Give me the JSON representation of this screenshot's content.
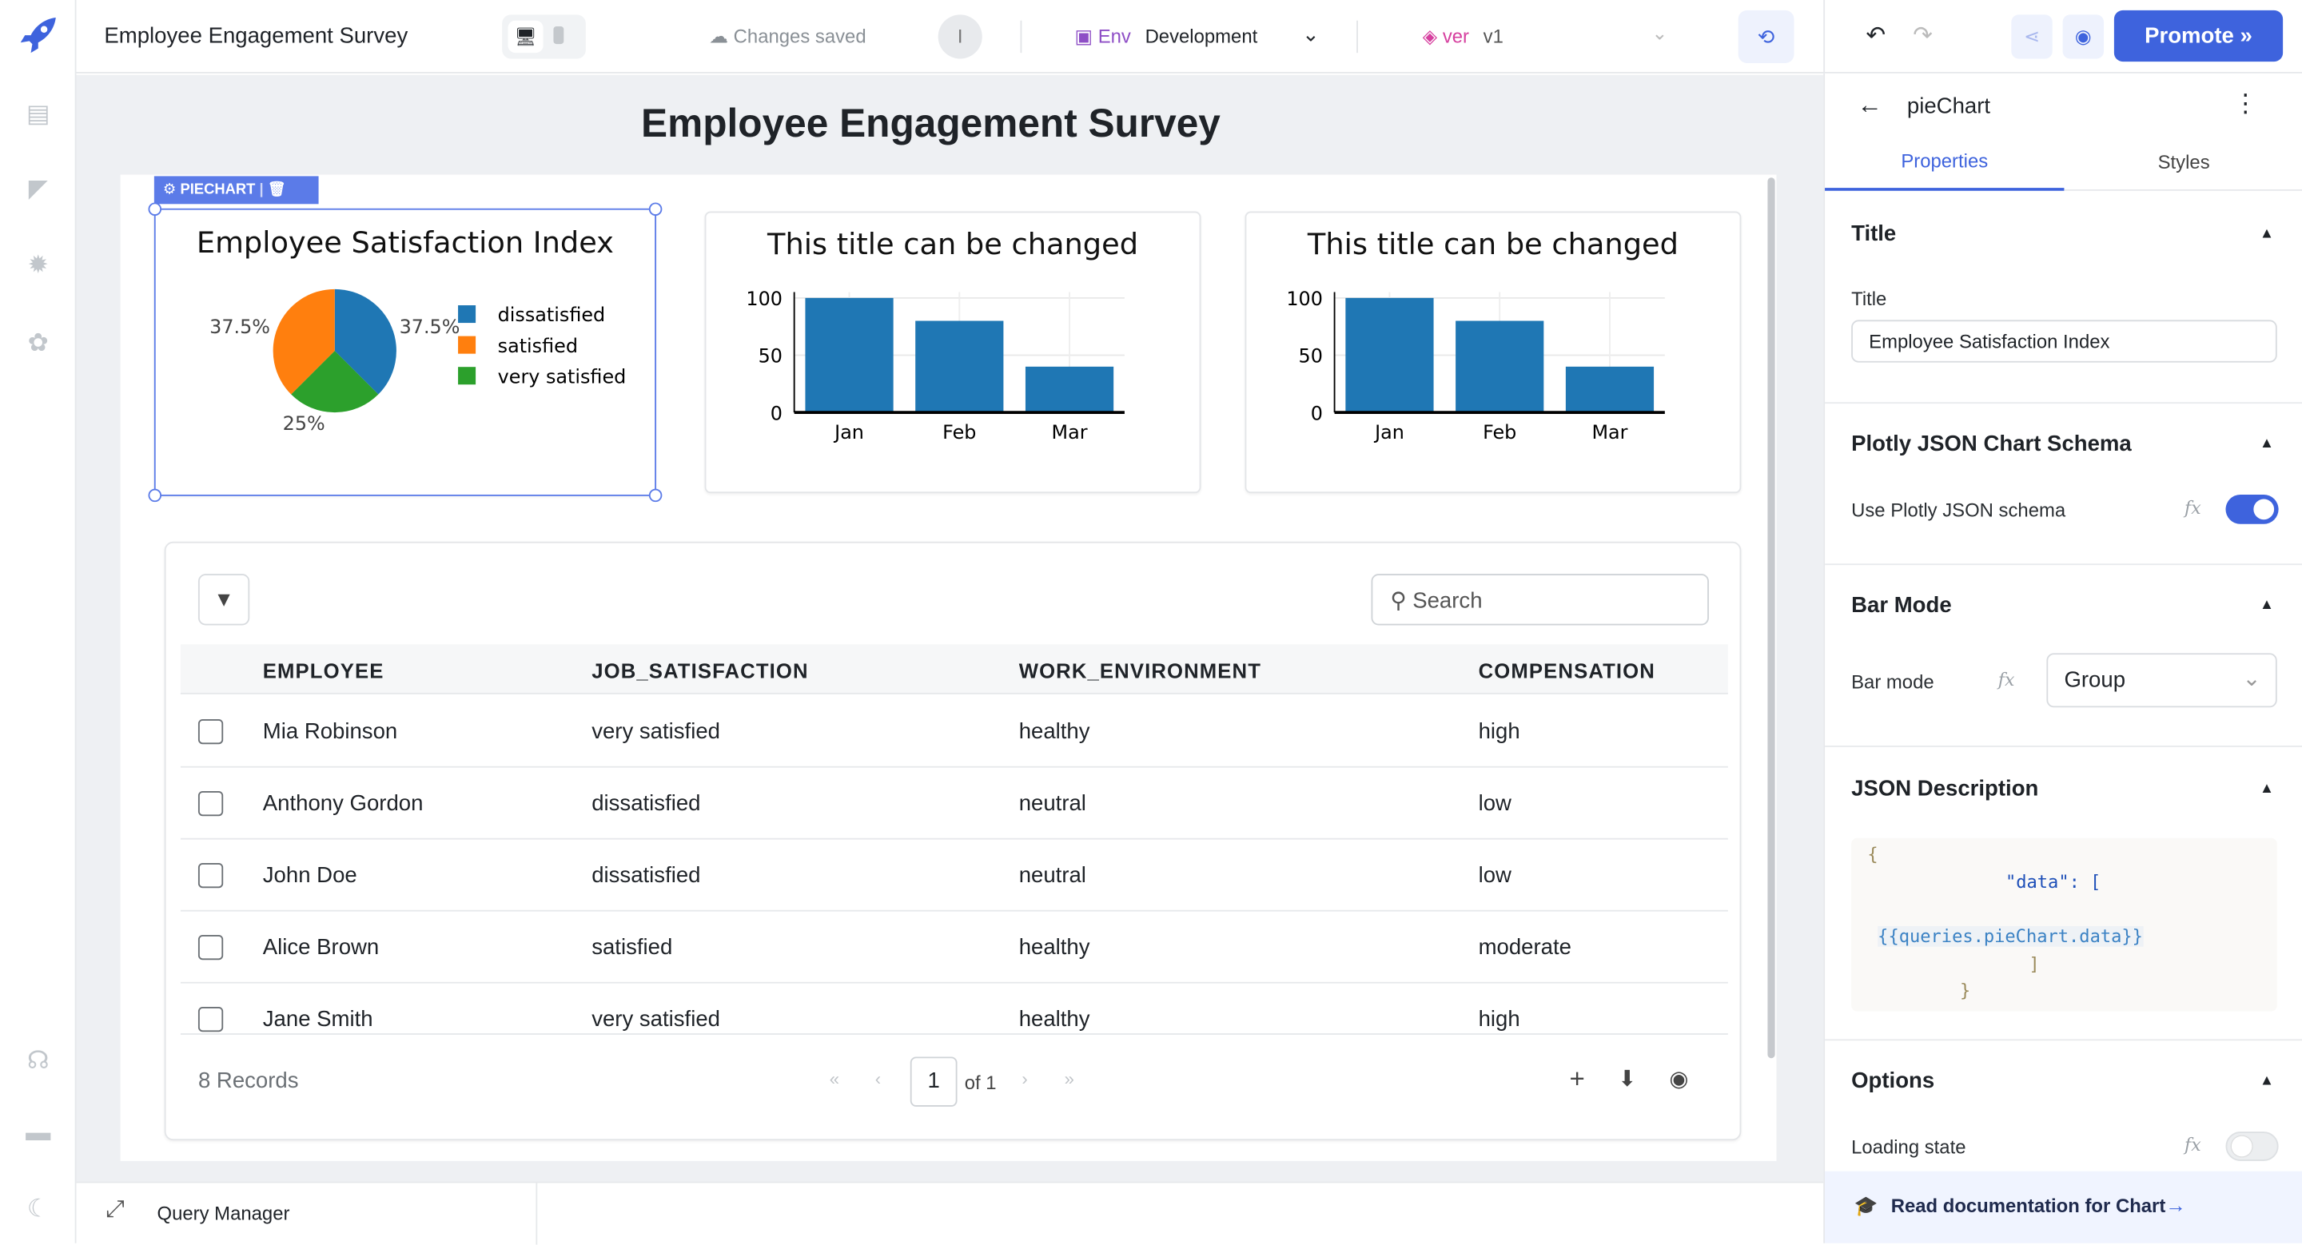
{
  "app": {
    "title": "Employee Engagement Survey",
    "save_status": "Changes saved",
    "user_initial": "I",
    "env_label": "Env",
    "env_value": "Development",
    "ver_label": "ver",
    "ver_value": "v1",
    "promote_label": "Promote"
  },
  "canvas": {
    "page_title": "Employee Engagement Survey",
    "selected_widget_label": "PIECHART"
  },
  "chart_data": [
    {
      "type": "pie",
      "title": "Employee Satisfaction Index",
      "labels": [
        "dissatisfied",
        "satisfied",
        "very satisfied"
      ],
      "values": [
        37.5,
        37.5,
        25
      ],
      "slice_labels": [
        "37.5%",
        "37.5%",
        "25%"
      ],
      "colors": [
        "#1f77b4",
        "#ff7f0e",
        "#2ca02c"
      ],
      "legend": "right"
    },
    {
      "type": "bar",
      "title": "This title can be changed",
      "categories": [
        "Jan",
        "Feb",
        "Mar"
      ],
      "values": [
        100,
        80,
        40
      ],
      "ylim": [
        0,
        100
      ],
      "yticks": [
        "0",
        "50",
        "100"
      ],
      "color": "#1f77b4"
    },
    {
      "type": "bar",
      "title": "This title can be changed",
      "categories": [
        "Jan",
        "Feb",
        "Mar"
      ],
      "values": [
        100,
        80,
        40
      ],
      "ylim": [
        0,
        100
      ],
      "yticks": [
        "0",
        "50",
        "100"
      ],
      "color": "#1f77b4"
    }
  ],
  "table": {
    "search_placeholder": "Search",
    "columns": [
      "EMPLOYEE",
      "JOB_SATISFACTION",
      "WORK_ENVIRONMENT",
      "COMPENSATION"
    ],
    "rows": [
      [
        "Mia Robinson",
        "very satisfied",
        "healthy",
        "high"
      ],
      [
        "Anthony Gordon",
        "dissatisfied",
        "neutral",
        "low"
      ],
      [
        "John Doe",
        "dissatisfied",
        "neutral",
        "low"
      ],
      [
        "Alice Brown",
        "satisfied",
        "healthy",
        "moderate"
      ],
      [
        "Jane Smith",
        "very satisfied",
        "healthy",
        "high"
      ]
    ],
    "records": "8 Records",
    "page": "1",
    "of_pages": "of 1"
  },
  "bottom": {
    "query_manager": "Query Manager"
  },
  "panel": {
    "component_name": "pieChart",
    "tab_properties": "Properties",
    "tab_styles": "Styles",
    "title_section": "Title",
    "title_label": "Title",
    "title_value": "Employee Satisfaction Index",
    "plotly_section": "Plotly JSON Chart Schema",
    "plotly_label": "Use Plotly JSON schema",
    "plotly_enabled": true,
    "barmode_section": "Bar Mode",
    "barmode_label": "Bar mode",
    "barmode_value": "Group",
    "json_section": "JSON Description",
    "json_lines": [
      "{",
      "\"data\": [",
      "{{queries.pieChart.data}}",
      "]",
      "}"
    ],
    "options_section": "Options",
    "loading_label": "Loading state",
    "loading_enabled": false,
    "docs_link": "Read documentation for Chart",
    "fx": "fx"
  },
  "colors": {
    "accent": "#3e63dd",
    "selection": "#5b7be8"
  }
}
